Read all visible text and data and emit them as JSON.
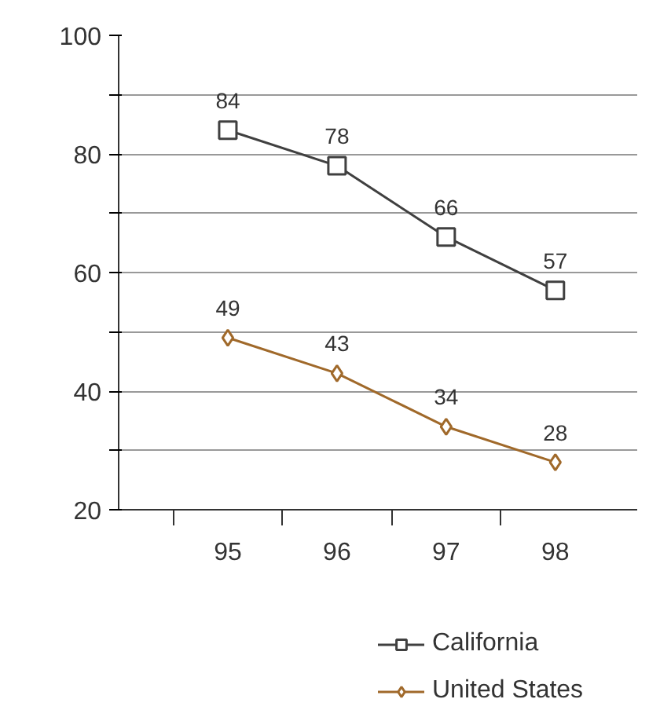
{
  "chart_data": {
    "type": "line",
    "categories": [
      "95",
      "96",
      "97",
      "98"
    ],
    "series": [
      {
        "name": "California",
        "color": "#404040",
        "marker": "square",
        "values": [
          84,
          78,
          66,
          57
        ]
      },
      {
        "name": "United States",
        "color": "#a0692a",
        "marker": "diamond",
        "values": [
          49,
          43,
          34,
          28
        ]
      }
    ],
    "ylim": [
      20,
      100
    ],
    "yticks": [
      20,
      {
        "value": 30,
        "label": null
      },
      40,
      {
        "value": 50,
        "label": null
      },
      60,
      {
        "value": 70,
        "label": null
      },
      80,
      {
        "value": 90,
        "label": null
      },
      100
    ],
    "grid": "y",
    "legend": "bottom",
    "data_labels": true,
    "line_style": "solid"
  }
}
